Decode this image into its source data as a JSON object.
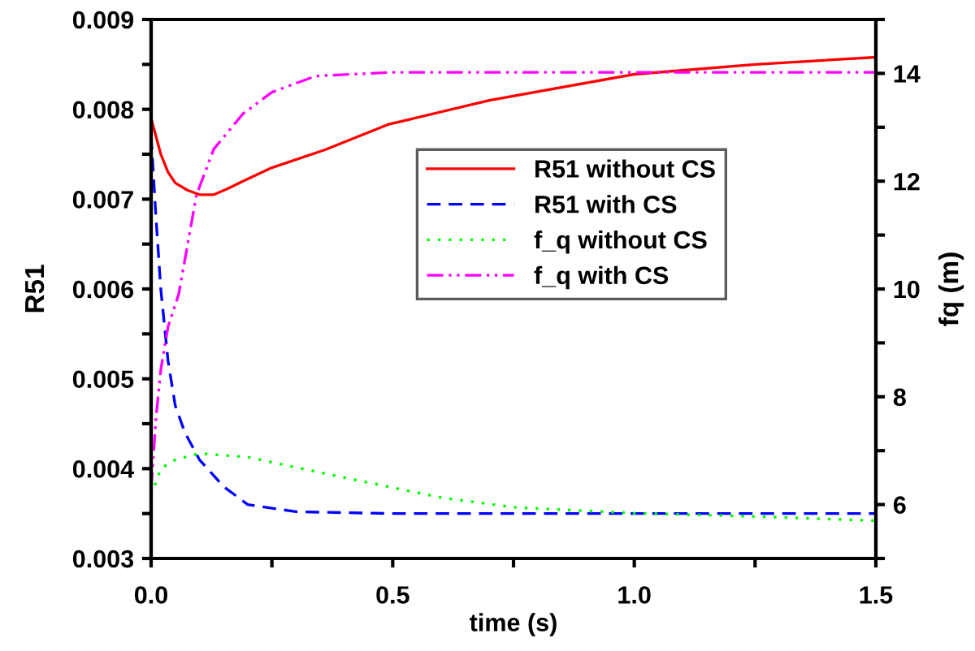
{
  "chart_data": {
    "type": "line",
    "xlabel": "time (s)",
    "ylabel": "R51",
    "y2label": "fq (m)",
    "xlim": [
      0,
      1.5
    ],
    "xticks": [
      {
        "value": 0,
        "label": "0.0"
      },
      {
        "value": 0.25,
        "label": null
      },
      {
        "value": 0.5,
        "label": "0.5"
      },
      {
        "value": 0.75,
        "label": null
      },
      {
        "value": 1.0,
        "label": "1.0"
      },
      {
        "value": 1.25,
        "label": null
      },
      {
        "value": 1.5,
        "label": "1.5"
      }
    ],
    "ylim": [
      0.003,
      0.009
    ],
    "yticks": [
      0.003,
      {
        "value": 0.0035,
        "label": null
      },
      0.004,
      {
        "value": 0.0045,
        "label": null
      },
      0.005,
      {
        "value": 0.0055,
        "label": null
      },
      0.006,
      {
        "value": 0.0065,
        "label": null
      },
      0.007,
      {
        "value": 0.0075,
        "label": null
      },
      0.008,
      {
        "value": 0.0085,
        "label": null
      },
      0.009
    ],
    "y2lim": [
      5,
      15
    ],
    "y2ticks": [
      {
        "value": 5,
        "label": null
      },
      6,
      {
        "value": 7,
        "label": null
      },
      8,
      {
        "value": 9,
        "label": null
      },
      10,
      {
        "value": 11,
        "label": null
      },
      12,
      {
        "value": 13,
        "label": null
      },
      14,
      {
        "value": 15,
        "label": null
      }
    ],
    "legend": "center",
    "grid": false,
    "series": [
      {
        "name": "R51 without CS",
        "color": "#ff0000",
        "line_style": "solid",
        "x": [
          0,
          0.01,
          0.02,
          0.035,
          0.05,
          0.075,
          0.1,
          0.13,
          0.16,
          0.19,
          0.25,
          0.36,
          0.49,
          0.7,
          1.0,
          1.25,
          1.5
        ],
        "values": [
          0.0079,
          0.0077,
          0.0075,
          0.0073,
          0.00718,
          0.0071,
          0.00705,
          0.00705,
          0.00712,
          0.0072,
          0.00735,
          0.00755,
          0.00783,
          0.0081,
          0.00839,
          0.0085,
          0.00858
        ]
      },
      {
        "name": "R51 with CS",
        "color": "#0000ff",
        "line_style": "dashed",
        "x": [
          0,
          0.01,
          0.02,
          0.035,
          0.05,
          0.07,
          0.1,
          0.15,
          0.2,
          0.3,
          0.5,
          1.0,
          1.5
        ],
        "values": [
          0.0077,
          0.0068,
          0.006,
          0.0052,
          0.0047,
          0.0044,
          0.0041,
          0.0038,
          0.0036,
          0.00352,
          0.0035,
          0.0035,
          0.0035
        ]
      },
      {
        "name": "f_q without CS",
        "color": "#00ff00",
        "line_style": "dotted",
        "axis": "y2",
        "x": [
          0,
          0.02,
          0.05,
          0.1,
          0.2,
          0.4,
          0.6,
          0.75,
          1.0,
          1.25,
          1.5
        ],
        "values": [
          6.17,
          6.67,
          6.83,
          6.95,
          6.88,
          6.5,
          6.13,
          5.95,
          5.84,
          5.78,
          5.7
        ]
      },
      {
        "name": "f_q with CS",
        "color": "#ff00ff",
        "line_style": "dashdotdot",
        "axis": "y2",
        "x": [
          0,
          0.01,
          0.02,
          0.035,
          0.057,
          0.094,
          0.13,
          0.19,
          0.25,
          0.34,
          0.5,
          1.0,
          1.5
        ],
        "values": [
          6.3,
          7.6,
          8.5,
          9.3,
          9.9,
          11.75,
          12.6,
          13.25,
          13.65,
          13.95,
          14.02,
          14.02,
          14.02
        ]
      }
    ]
  }
}
